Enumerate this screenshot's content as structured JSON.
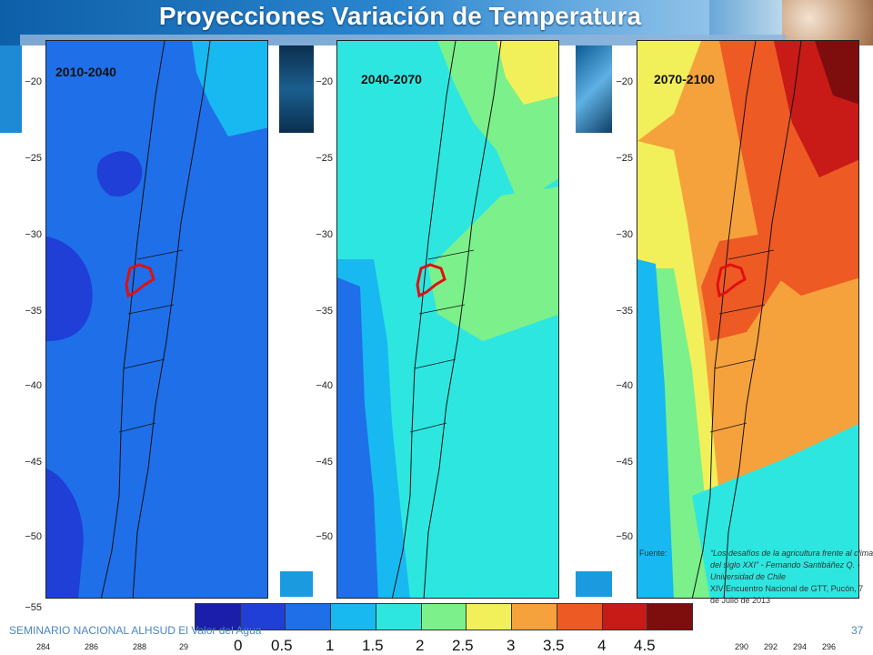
{
  "slide": {
    "title": "Proyecciones Variación de Temperatura",
    "footer": "SEMINARIO NACIONAL ALHSUD El Valor del Agua",
    "page_number": "37"
  },
  "panels": [
    {
      "period": "2010-2040"
    },
    {
      "period": "2040-2070"
    },
    {
      "period": "2070-2100"
    }
  ],
  "y_ticks": [
    "−20",
    "−25",
    "−30",
    "−35",
    "−40",
    "−45",
    "−50",
    "−55"
  ],
  "x_ticks": [
    "284",
    "286",
    "288",
    "29",
    "290",
    "292",
    "294",
    "296"
  ],
  "colorbar": {
    "labels": [
      "0",
      "0.5",
      "1",
      "1.5",
      "2",
      "2.5",
      "3",
      "3.5",
      "4",
      "4.5"
    ],
    "colors": [
      "#1a1ea8",
      "#1f3fd6",
      "#1f6fe8",
      "#18b8f0",
      "#2ee6e0",
      "#7cf08a",
      "#f2f05a",
      "#f6a23c",
      "#ee5a24",
      "#c81a16",
      "#7e0e0e"
    ]
  },
  "source": {
    "label": "Fuente:",
    "line1": "“Los desafíos de la agricultura frente al clima del siglo XXI” - Fernando Santibáñez Q. - Universidad de Chile",
    "line2": "XIV Encuentro Nacional de GTT, Pucón, 7 de Julio de 2013"
  },
  "colors": {
    "basin_outline": "#e01010",
    "banner_blue": "#0d5fa8"
  }
}
